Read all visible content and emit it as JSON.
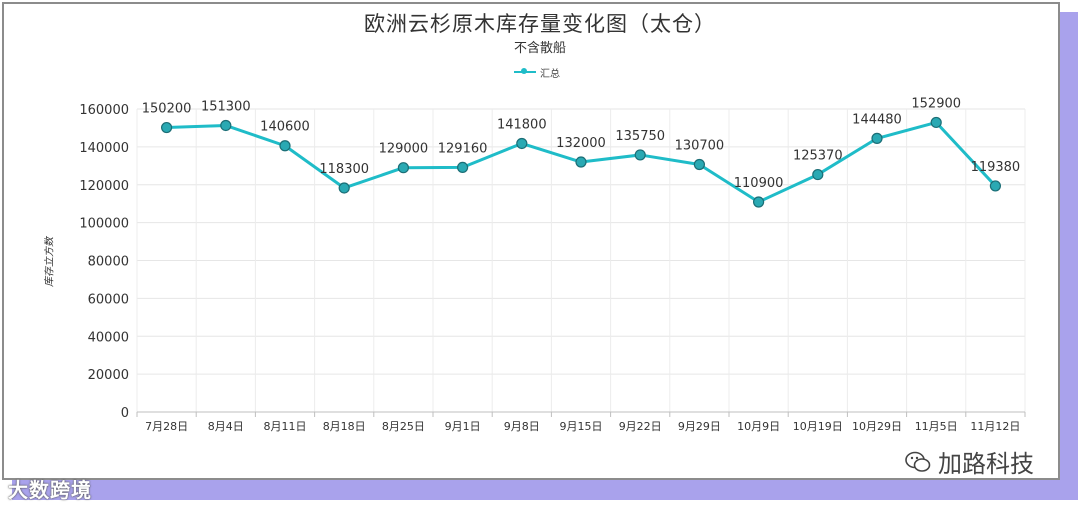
{
  "chart_data": {
    "type": "line",
    "title": "欧洲云杉原木库存量变化图（太仓）",
    "subtitle": "不含散船",
    "ylabel": "库存立方数",
    "xlabel": "",
    "legend": "top",
    "grid": true,
    "ylim": [
      0,
      160000
    ],
    "yticks": [
      0,
      20000,
      40000,
      60000,
      80000,
      100000,
      120000,
      140000,
      160000
    ],
    "categories": [
      "7月28日",
      "8月4日",
      "8月11日",
      "8月18日",
      "8月25日",
      "9月1日",
      "9月8日",
      "9月15日",
      "9月22日",
      "9月29日",
      "10月9日",
      "10月19日",
      "10月29日",
      "11月5日",
      "11月12日"
    ],
    "series": [
      {
        "name": "汇总",
        "color": "#1fbcc8",
        "values": [
          150200,
          151300,
          140600,
          118300,
          129000,
          129160,
          141800,
          132000,
          135750,
          130700,
          110900,
          125370,
          144480,
          152900,
          119380
        ]
      }
    ]
  },
  "watermarks": {
    "left": "大数跨境",
    "right": "加路科技"
  }
}
